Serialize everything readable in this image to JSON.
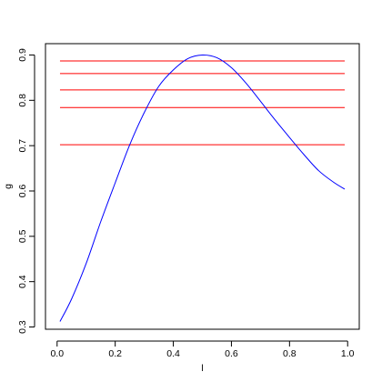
{
  "chart_data": {
    "type": "line",
    "title": "",
    "xlabel": "l",
    "ylabel": "g",
    "xlim": [
      -0.04,
      1.04
    ],
    "ylim": [
      0.295,
      0.925
    ],
    "x_ticks": [
      0.0,
      0.2,
      0.4,
      0.6,
      0.8,
      1.0
    ],
    "x_tick_labels": [
      "0.0",
      "0.2",
      "0.4",
      "0.6",
      "0.8",
      "1.0"
    ],
    "y_ticks": [
      0.3,
      0.4,
      0.5,
      0.6,
      0.7,
      0.8,
      0.9
    ],
    "y_tick_labels": [
      "0.3",
      "0.4",
      "0.5",
      "0.6",
      "0.7",
      "0.8",
      "0.9"
    ],
    "grid": false,
    "legend": "none",
    "series": [
      {
        "color": "#0000ff",
        "x": [
          0.01,
          0.05,
          0.1,
          0.15,
          0.2,
          0.25,
          0.3,
          0.35,
          0.4,
          0.45,
          0.5,
          0.55,
          0.6,
          0.65,
          0.7,
          0.75,
          0.8,
          0.85,
          0.9,
          0.95,
          0.99
        ],
        "y": [
          0.312,
          0.362,
          0.44,
          0.532,
          0.618,
          0.702,
          0.773,
          0.831,
          0.867,
          0.892,
          0.9,
          0.894,
          0.872,
          0.838,
          0.798,
          0.757,
          0.718,
          0.68,
          0.645,
          0.62,
          0.604
        ]
      }
    ],
    "horizontal_lines": {
      "color": "#ff0000",
      "x_range": [
        0.01,
        0.99
      ],
      "y": [
        0.702,
        0.784,
        0.823,
        0.859,
        0.887
      ]
    }
  }
}
